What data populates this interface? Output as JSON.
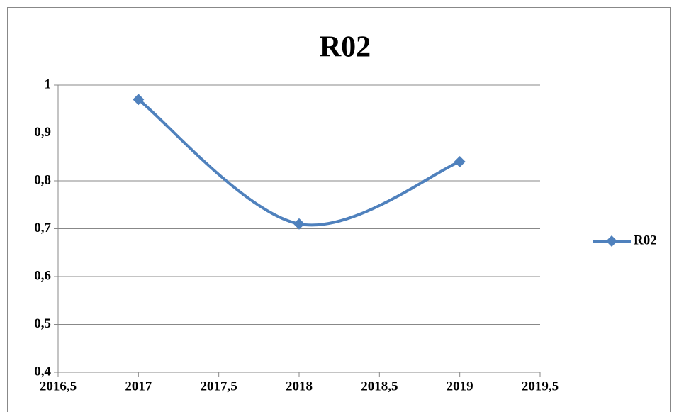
{
  "chart_data": {
    "type": "line",
    "title": "R02",
    "x": [
      2017,
      2018,
      2019
    ],
    "series": [
      {
        "name": "R02",
        "color": "#4f81bd",
        "values": [
          0.97,
          0.71,
          0.84
        ]
      }
    ],
    "xlim": [
      2016.5,
      2019.5
    ],
    "xticks": [
      {
        "value": 2016.5,
        "label": "2016,5"
      },
      2017,
      {
        "value": 2017.5,
        "label": "2017,5"
      },
      2018,
      {
        "value": 2018.5,
        "label": "2018,5"
      },
      2019,
      {
        "value": 2019.5,
        "label": "2019,5"
      }
    ],
    "ylim": [
      0.4,
      1
    ],
    "yticks": [
      {
        "value": 0.4,
        "label": "0,4"
      },
      {
        "value": 0.5,
        "label": "0,5"
      },
      {
        "value": 0.6,
        "label": "0,6"
      },
      {
        "value": 0.7,
        "label": "0,7"
      },
      {
        "value": 0.8,
        "label": "0,8"
      },
      {
        "value": 0.9,
        "label": "0,9"
      },
      1
    ],
    "grid": true,
    "smooth": true,
    "legend": "right"
  }
}
